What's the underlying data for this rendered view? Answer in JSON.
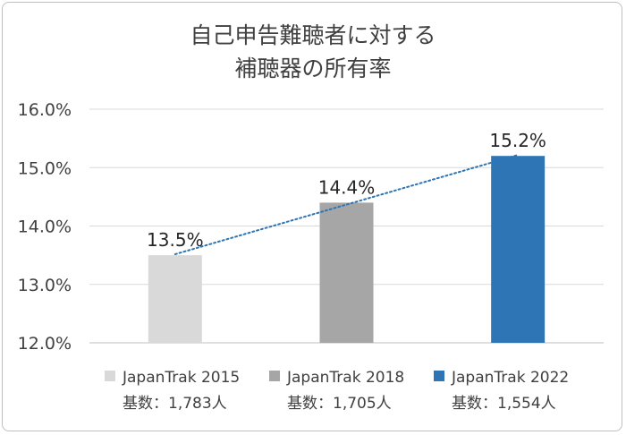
{
  "chart_data": {
    "type": "bar",
    "title_lines": [
      "自己申告難聴者に対する",
      "補聴器の所有率"
    ],
    "categories": [
      "JapanTrak 2015",
      "JapanTrak 2018",
      "JapanTrak 2022"
    ],
    "category_notes": [
      "基数：1,783人",
      "基数：1,705人",
      "基数：1,554人"
    ],
    "values": [
      13.5,
      14.4,
      15.2
    ],
    "data_labels": [
      "13.5%",
      "14.4%",
      "15.2%"
    ],
    "colors": [
      "#d9d9d9",
      "#a6a6a6",
      "#2e75b6"
    ],
    "ylim": [
      12.0,
      16.0
    ],
    "yticks": [
      12.0,
      13.0,
      14.0,
      15.0,
      16.0
    ],
    "ytick_labels": [
      "12.0%",
      "13.0%",
      "14.0%",
      "15.0%",
      "16.0%"
    ],
    "grid": true,
    "trendline": {
      "style": "dotted",
      "color": "#2e75b6"
    },
    "legend_position": "bottom"
  }
}
